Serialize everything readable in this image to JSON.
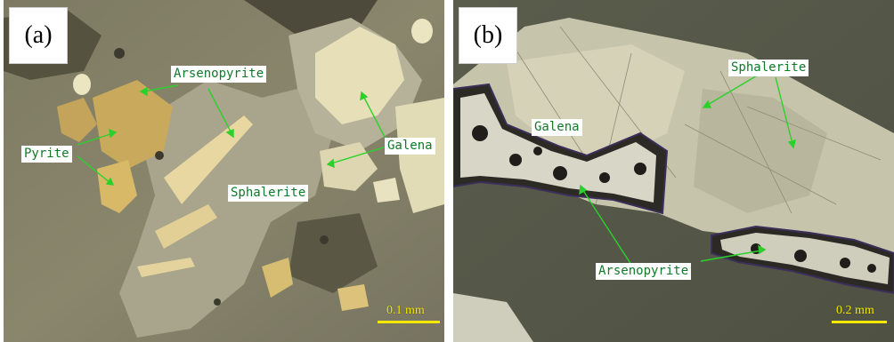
{
  "panels": [
    {
      "letter": "(a)",
      "labels": {
        "arsenopyrite": "Arsenopyrite",
        "pyrite": "Pyrite",
        "galena": "Galena",
        "sphalerite": "Sphalerite"
      },
      "scale": "0.1 mm"
    },
    {
      "letter": "(b)",
      "labels": {
        "sphalerite": "Sphalerite",
        "galena": "Galena",
        "arsenopyrite": "Arsenopyrite"
      },
      "scale": "0.2 mm"
    }
  ],
  "colors": {
    "label_text": "#117a2a",
    "arrow": "#2bd12b",
    "scale_bar": "#f4e800"
  }
}
